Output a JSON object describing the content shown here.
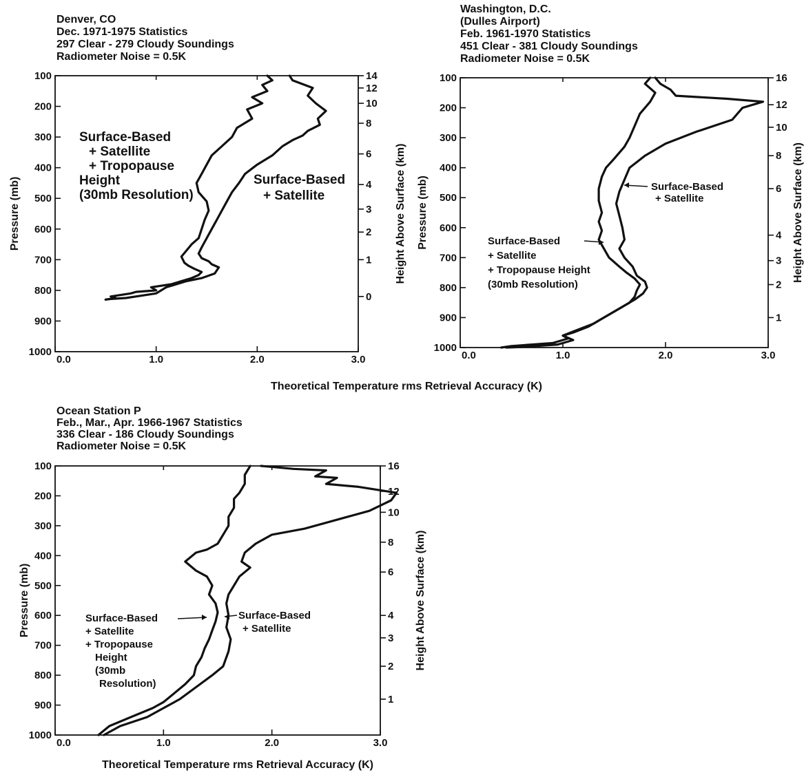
{
  "shared_xlabel": "Theoretical Temperature rms Retrieval Accuracy (K)",
  "chart_data": [
    {
      "type": "line",
      "header": [
        "Denver, CO",
        "Dec. 1971-1975 Statistics",
        "297 Clear - 279 Cloudy Soundings",
        "Radiometer Noise = 0.5K"
      ],
      "xlabel": "Theoretical Temperature rms Retrieval Accuracy (K)",
      "ylabel": "Pressure (mb)",
      "y2label": "Height Above Surface (km)",
      "xlim": [
        0.0,
        3.0
      ],
      "ylim": [
        100,
        1000
      ],
      "y_inverted": true,
      "xticks": [
        "0.0",
        "1.0",
        "2.0",
        "3.0"
      ],
      "yticks": [
        "100",
        "200",
        "300",
        "400",
        "500",
        "600",
        "700",
        "800",
        "900",
        "1000"
      ],
      "y2ticks": [
        {
          "label": "14",
          "p": 100
        },
        {
          "label": "12",
          "p": 140
        },
        {
          "label": "10",
          "p": 190
        },
        {
          "label": "8",
          "p": 255
        },
        {
          "label": "6",
          "p": 355
        },
        {
          "label": "4",
          "p": 455
        },
        {
          "label": "3",
          "p": 535
        },
        {
          "label": "2",
          "p": 610
        },
        {
          "label": "1",
          "p": 700
        },
        {
          "label": "0",
          "p": 820
        }
      ],
      "annotations": [
        {
          "lines": [
            "Surface-Based",
            "+ Satellite",
            "+ Tropopause",
            "Height",
            "(30mb Resolution)"
          ]
        },
        {
          "lines": [
            "Surface-Based",
            "+ Satellite"
          ]
        }
      ],
      "series": [
        {
          "values_x": [
            2.1,
            2.15,
            2.05,
            2.1,
            1.95,
            2.05,
            1.9,
            1.95,
            1.8,
            1.75,
            1.65,
            1.55,
            1.5,
            1.45,
            1.4,
            1.42,
            1.5,
            1.52,
            1.48,
            1.45,
            1.42,
            1.35,
            1.3,
            1.25,
            1.28,
            1.32,
            1.38,
            1.45,
            1.42,
            1.35,
            1.25,
            1.15,
            1.05,
            0.95,
            1.0,
            0.8,
            0.75,
            0.55,
            0.6,
            0.5
          ],
          "values_y": [
            100,
            115,
            130,
            150,
            170,
            190,
            210,
            240,
            270,
            300,
            330,
            360,
            390,
            420,
            450,
            480,
            510,
            540,
            570,
            600,
            630,
            650,
            670,
            690,
            710,
            720,
            730,
            740,
            750,
            760,
            770,
            780,
            785,
            790,
            800,
            805,
            810,
            820,
            825,
            830
          ]
        },
        {
          "values_x": [
            2.32,
            2.35,
            2.55,
            2.5,
            2.58,
            2.68,
            2.6,
            2.62,
            2.5,
            2.45,
            2.35,
            2.25,
            2.15,
            2.0,
            1.88,
            1.82,
            1.75,
            1.7,
            1.65,
            1.6,
            1.55,
            1.5,
            1.45,
            1.42,
            1.45,
            1.52,
            1.55,
            1.62,
            1.58,
            1.45,
            1.3,
            1.2,
            1.1,
            1.05,
            1.0,
            0.9,
            0.8,
            0.7,
            0.55,
            0.5
          ],
          "values_y": [
            100,
            115,
            140,
            165,
            190,
            215,
            240,
            260,
            280,
            295,
            310,
            330,
            360,
            390,
            420,
            450,
            480,
            510,
            540,
            570,
            600,
            630,
            660,
            680,
            695,
            705,
            715,
            725,
            745,
            760,
            770,
            780,
            790,
            800,
            810,
            815,
            820,
            825,
            828,
            830
          ]
        }
      ]
    },
    {
      "type": "line",
      "header": [
        "Washington, D.C.",
        "(Dulles Airport)",
        "Feb. 1961-1970 Statistics",
        "451 Clear - 381 Cloudy Soundings",
        "Radiometer Noise = 0.5K"
      ],
      "xlabel": "",
      "ylabel": "Pressure (mb)",
      "y2label": "Height Above Surface (km)",
      "xlim": [
        0.0,
        3.0
      ],
      "ylim": [
        100,
        1000
      ],
      "y_inverted": true,
      "xticks": [
        "0.0",
        "1.0",
        "2.0",
        "3.0"
      ],
      "yticks": [
        "100",
        "200",
        "300",
        "400",
        "500",
        "600",
        "700",
        "800",
        "900",
        "1000"
      ],
      "y2ticks": [
        {
          "label": "16",
          "p": 100
        },
        {
          "label": "12",
          "p": 190
        },
        {
          "label": "10",
          "p": 265
        },
        {
          "label": "8",
          "p": 360
        },
        {
          "label": "6",
          "p": 470
        },
        {
          "label": "4",
          "p": 625
        },
        {
          "label": "3",
          "p": 710
        },
        {
          "label": "2",
          "p": 790
        },
        {
          "label": "1",
          "p": 900
        }
      ],
      "annotations": [
        {
          "lines": [
            "Surface-Based",
            "+ Satellite"
          ]
        },
        {
          "lines": [
            "Surface-Based",
            "+ Satellite",
            "+ Tropopause Height",
            "(30mb Resolution)"
          ]
        }
      ],
      "series": [
        {
          "values_x": [
            1.85,
            1.8,
            1.9,
            1.85,
            1.75,
            1.7,
            1.65,
            1.6,
            1.5,
            1.42,
            1.38,
            1.35,
            1.35,
            1.38,
            1.35,
            1.38,
            1.35,
            1.4,
            1.45,
            1.55,
            1.62,
            1.7,
            1.75,
            1.72,
            1.7,
            1.65,
            1.55,
            1.45,
            1.35,
            1.25,
            1.1,
            1.0,
            1.05,
            0.9,
            0.5,
            0.4
          ],
          "values_y": [
            100,
            120,
            150,
            180,
            220,
            260,
            300,
            330,
            370,
            400,
            430,
            470,
            510,
            550,
            580,
            610,
            640,
            670,
            700,
            730,
            750,
            770,
            790,
            810,
            830,
            850,
            870,
            890,
            910,
            930,
            950,
            960,
            970,
            985,
            995,
            1000
          ]
        },
        {
          "values_x": [
            1.9,
            1.95,
            2.05,
            2.1,
            2.6,
            2.95,
            2.75,
            2.65,
            2.3,
            2.0,
            1.8,
            1.65,
            1.6,
            1.55,
            1.52,
            1.55,
            1.58,
            1.6,
            1.55,
            1.6,
            1.68,
            1.72,
            1.8,
            1.82,
            1.78,
            1.7,
            1.6,
            1.5,
            1.4,
            1.3,
            1.15,
            1.0,
            1.1,
            0.95,
            0.6,
            0.45
          ],
          "values_y": [
            100,
            120,
            140,
            160,
            170,
            180,
            200,
            240,
            280,
            320,
            360,
            400,
            440,
            480,
            520,
            560,
            600,
            640,
            670,
            700,
            730,
            760,
            780,
            800,
            820,
            840,
            860,
            880,
            900,
            920,
            940,
            960,
            975,
            990,
            998,
            1000
          ]
        }
      ]
    },
    {
      "type": "line",
      "header": [
        "Ocean Station P",
        "Feb., Mar., Apr. 1966-1967 Statistics",
        "336 Clear - 186 Cloudy Soundings",
        "Radiometer Noise = 0.5K"
      ],
      "xlabel": "Theoretical Temperature rms Retrieval Accuracy (K)",
      "ylabel": "Pressure (mb)",
      "y2label": "Height Above Surface (km)",
      "xlim": [
        0.0,
        3.0
      ],
      "ylim": [
        100,
        1000
      ],
      "y_inverted": true,
      "xticks": [
        "0.0",
        "1.0",
        "2.0",
        "3.0"
      ],
      "yticks": [
        "100",
        "200",
        "300",
        "400",
        "500",
        "600",
        "700",
        "800",
        "900",
        "1000"
      ],
      "y2ticks": [
        {
          "label": "16",
          "p": 100
        },
        {
          "label": "12",
          "p": 185
        },
        {
          "label": "10",
          "p": 255
        },
        {
          "label": "8",
          "p": 355
        },
        {
          "label": "6",
          "p": 455
        },
        {
          "label": "4",
          "p": 600
        },
        {
          "label": "3",
          "p": 675
        },
        {
          "label": "2",
          "p": 770
        },
        {
          "label": "1",
          "p": 880
        }
      ],
      "annotations": [
        {
          "lines": [
            "Surface-Based",
            "+ Satellite",
            "+ Tropopause",
            "Height",
            "(30mb",
            "Resolution)"
          ]
        },
        {
          "lines": [
            "Surface-Based",
            "+ Satellite"
          ]
        }
      ],
      "series": [
        {
          "values_x": [
            1.8,
            1.75,
            1.75,
            1.7,
            1.65,
            1.65,
            1.6,
            1.6,
            1.55,
            1.5,
            1.4,
            1.3,
            1.2,
            1.3,
            1.4,
            1.45,
            1.42,
            1.48,
            1.5,
            1.48,
            1.45,
            1.42,
            1.38,
            1.35,
            1.3,
            1.28,
            1.2,
            1.1,
            1.0,
            0.9,
            0.7,
            0.5,
            0.4
          ],
          "values_y": [
            100,
            130,
            160,
            190,
            210,
            240,
            270,
            300,
            330,
            360,
            380,
            390,
            420,
            450,
            470,
            500,
            530,
            560,
            590,
            620,
            650,
            680,
            710,
            740,
            770,
            800,
            830,
            860,
            890,
            910,
            940,
            970,
            1000
          ]
        },
        {
          "values_x": [
            1.9,
            2.2,
            2.5,
            2.4,
            2.6,
            2.5,
            2.8,
            3.15,
            3.1,
            2.9,
            2.6,
            2.3,
            2.0,
            1.85,
            1.75,
            1.72,
            1.8,
            1.7,
            1.65,
            1.6,
            1.58,
            1.6,
            1.58,
            1.62,
            1.6,
            1.55,
            1.45,
            1.3,
            1.15,
            1.0,
            0.85,
            0.6,
            0.45
          ],
          "values_y": [
            100,
            110,
            115,
            135,
            140,
            160,
            170,
            190,
            215,
            250,
            280,
            310,
            330,
            360,
            390,
            420,
            440,
            470,
            500,
            530,
            560,
            600,
            640,
            680,
            720,
            770,
            800,
            840,
            880,
            910,
            940,
            970,
            1000
          ]
        }
      ]
    }
  ]
}
